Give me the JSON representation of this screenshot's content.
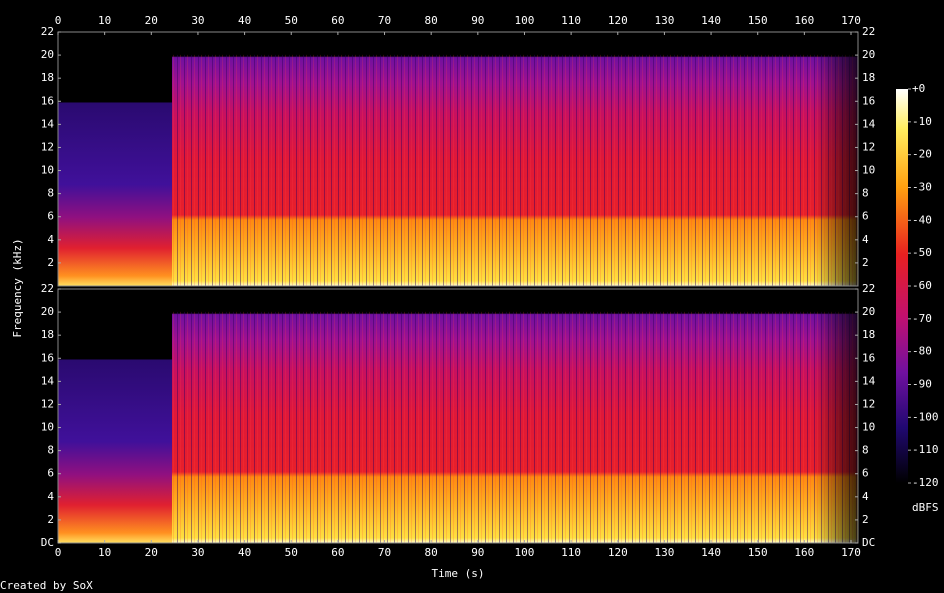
{
  "chart_data": [
    {
      "type": "spectrogram",
      "xlim": [
        0,
        171.5
      ],
      "xticks": [
        0,
        10,
        20,
        30,
        40,
        50,
        60,
        70,
        80,
        90,
        100,
        110,
        120,
        130,
        140,
        150,
        160,
        170
      ],
      "ylim": [
        0,
        22
      ],
      "yticks": [
        2,
        4,
        6,
        8,
        10,
        12,
        14,
        16,
        18,
        20,
        22
      ]
    },
    {
      "type": "spectrogram",
      "xlim": [
        0,
        171.5
      ],
      "xticks": [
        0,
        10,
        20,
        30,
        40,
        50,
        60,
        70,
        80,
        90,
        100,
        110,
        120,
        130,
        140,
        150,
        160,
        170
      ],
      "ylim": [
        0,
        22
      ],
      "yticks": [
        {
          "value": 0,
          "label": "DC"
        },
        2,
        4,
        6,
        8,
        10,
        12,
        14,
        16,
        18,
        20,
        22
      ],
      "xlabel": "Time (s)"
    }
  ],
  "ylabel": "Frequency (kHz)",
  "colorbar": {
    "lim": [
      -120,
      0
    ],
    "ticks": [
      {
        "value": 0,
        "label": "+0"
      },
      -10,
      -20,
      -30,
      -40,
      -50,
      -60,
      -70,
      -80,
      -90,
      -100,
      -110,
      -120
    ],
    "label": "dBFS"
  },
  "credit": "Created by SoX"
}
